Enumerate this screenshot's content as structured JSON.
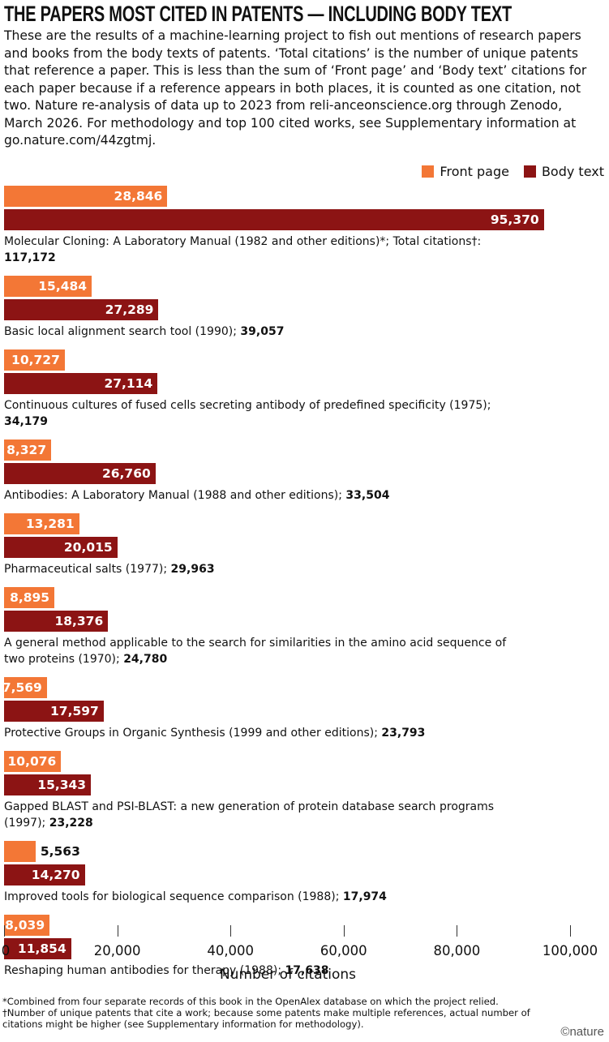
{
  "chart_data": {
    "type": "bar",
    "orientation": "horizontal",
    "title": "THE PAPERS MOST CITED IN PATENTS — INCLUDING BODY TEXT",
    "subtitle": "These are the results of a machine-learning project to fish out mentions of research papers and books from the body texts of patents. ‘Total citations’ is the number of unique patents that reference a paper. This is less than the sum of ‘Front page’ and ‘Body text’ citations for each paper because if a reference appears in both places, it is counted as one citation, not two. Nature re-analysis of data up to 2023 from reli-anceonscience.org through Zenodo, March 2026. For methodology and top 100 cited works, see Supplementary information at go.nature.com/44zgtmj.",
    "legend": "top-right",
    "categories": [
      "Molecular Cloning: A Laboratory Manual (1982 and other editions)*; Total citations†:",
      "Basic local alignment search tool (1990);",
      "Continuous cultures of fused cells secreting antibody of predefined specificity (1975);",
      "Antibodies: A Laboratory Manual (1988 and other editions);",
      "Pharmaceutical salts (1977);",
      "A general method applicable to the search for similarities in the amino acid sequence of two proteins (1970);",
      "Protective Groups in Organic Synthesis (1999 and other editions);",
      "Gapped BLAST and PSI-BLAST: a new generation of protein database search programs (1997);",
      "Improved tools for biological sequence comparison (1988);",
      "Reshaping human antibodies for therapy (1988);"
    ],
    "totals": [
      117172,
      39057,
      34179,
      33504,
      29963,
      24780,
      23793,
      23228,
      17974,
      17638
    ],
    "total_labels": [
      "117,172",
      "39,057",
      "34,179",
      "33,504",
      "29,963",
      "24,780",
      "23,793",
      "23,228",
      "17,974",
      "17,638"
    ],
    "series": [
      {
        "name": "Front page",
        "color": "#f37736",
        "values": [
          28846,
          15484,
          10727,
          8327,
          13281,
          8895,
          7569,
          10076,
          5563,
          8039
        ],
        "value_labels": [
          "28,846",
          "15,484",
          "10,727",
          "8,327",
          "13,281",
          "8,895",
          "7,569",
          "10,076",
          "5,563",
          "8,039"
        ]
      },
      {
        "name": "Body text",
        "color": "#8c1414",
        "values": [
          95370,
          27289,
          27114,
          26760,
          20015,
          18376,
          17597,
          15343,
          14270,
          11854
        ],
        "value_labels": [
          "95,370",
          "27,289",
          "27,114",
          "26,760",
          "20,015",
          "18,376",
          "17,597",
          "15,343",
          "14,270",
          "11,854"
        ]
      }
    ],
    "xlabel": "Number of citations",
    "xlim": [
      0,
      100000
    ],
    "xticks": [
      0,
      {
        "value": 20000,
        "label": "20,000"
      },
      {
        "value": 40000,
        "label": "40,000"
      },
      {
        "value": 60000,
        "label": "60,000"
      },
      {
        "value": 80000,
        "label": "80,000"
      },
      {
        "value": 100000,
        "label": "100,000"
      }
    ],
    "footnotes": [
      "*Combined from four separate records of this book in the OpenAlex database on which the project relied.",
      "†Number of unique patents that cite a work; because some patents make multiple references, actual number of citations might be higher (see Supplementary information for methodology)."
    ],
    "credit": "©nature"
  }
}
